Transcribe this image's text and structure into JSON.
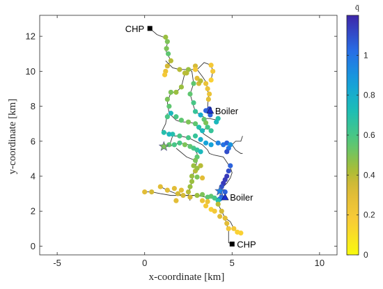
{
  "chart_data": {
    "type": "scatter",
    "xlabel": "x-coordinate [km]",
    "ylabel": "y-coordinate [km]",
    "xlim": [
      -6,
      11
    ],
    "ylim": [
      -0.5,
      13.2
    ],
    "xticks": [
      "-5",
      "0",
      "5",
      "10"
    ],
    "yticks": [
      "0",
      "2",
      "4",
      "6",
      "8",
      "10",
      "12"
    ],
    "grid": false,
    "colorbar": {
      "label": "q̄",
      "range": [
        0,
        1.2
      ],
      "ticks": [
        "0",
        "0.2",
        "0.4",
        "0.6",
        "0.8",
        "1"
      ],
      "colormap": "parula"
    },
    "annotations": [
      {
        "text": "CHP",
        "x": 0.3,
        "y": 12.45,
        "marker": "square"
      },
      {
        "text": "CHP",
        "x": 5.0,
        "y": 0.12,
        "marker": "square"
      },
      {
        "text": "Boiler",
        "x": 3.75,
        "y": 7.75,
        "marker": "triangle"
      },
      {
        "text": "Boiler",
        "x": 4.6,
        "y": 2.8,
        "marker": "triangle"
      }
    ],
    "stars": [
      {
        "x": 1.1,
        "y": 5.7,
        "value": 0.5
      },
      {
        "x": 4.3,
        "y": 3.15,
        "value": 0.95
      }
    ],
    "network_lines": [
      [
        [
          0.3,
          12.45
        ],
        [
          0.7,
          12.1
        ],
        [
          1.2,
          11.9
        ],
        [
          1.3,
          11.6
        ],
        [
          1.2,
          11.2
        ],
        [
          1.5,
          10.6
        ],
        [
          1.3,
          10.3
        ]
      ],
      [
        [
          1.2,
          10.6
        ],
        [
          1.6,
          10.2
        ],
        [
          2.0,
          10.1
        ],
        [
          2.5,
          10.1
        ],
        [
          3.0,
          10.1
        ],
        [
          3.4,
          10.5
        ],
        [
          3.8,
          10.35
        ],
        [
          3.9,
          10.0
        ],
        [
          3.8,
          9.5
        ]
      ],
      [
        [
          2.5,
          10.1
        ],
        [
          2.7,
          10.0
        ],
        [
          2.8,
          9.3
        ],
        [
          2.6,
          8.7
        ],
        [
          2.8,
          8.0
        ],
        [
          2.9,
          7.7
        ],
        [
          3.2,
          7.5
        ],
        [
          3.5,
          7.3
        ],
        [
          3.7,
          7.3
        ],
        [
          4.2,
          7.2
        ]
      ],
      [
        [
          2.3,
          9.9
        ],
        [
          2.1,
          9.1
        ],
        [
          1.8,
          8.8
        ],
        [
          1.5,
          8.8
        ],
        [
          1.3,
          8.2
        ],
        [
          1.4,
          7.6
        ],
        [
          1.8,
          7.2
        ],
        [
          2.1,
          7.1
        ],
        [
          2.5,
          7.1
        ],
        [
          2.9,
          7.0
        ],
        [
          3.1,
          6.7
        ],
        [
          3.4,
          6.4
        ],
        [
          4.0,
          6.0
        ],
        [
          4.4,
          5.8
        ],
        [
          4.6,
          5.9
        ],
        [
          5.0,
          5.8
        ]
      ],
      [
        [
          3.0,
          10.1
        ],
        [
          3.3,
          9.7
        ],
        [
          3.5,
          9.4
        ],
        [
          3.6,
          9.0
        ],
        [
          3.65,
          8.5
        ],
        [
          3.6,
          8.0
        ],
        [
          3.75,
          7.75
        ]
      ],
      [
        [
          1.3,
          7.6
        ],
        [
          1.2,
          7.0
        ],
        [
          1.0,
          6.6
        ],
        [
          1.4,
          6.4
        ],
        [
          1.7,
          6.3
        ],
        [
          2.0,
          6.3
        ],
        [
          2.5,
          6.2
        ],
        [
          2.9,
          6.0
        ],
        [
          3.3,
          5.8
        ],
        [
          3.6,
          5.5
        ],
        [
          3.7,
          5.3
        ],
        [
          4.0,
          5.2
        ],
        [
          4.5,
          5.1
        ],
        [
          4.7,
          4.8
        ],
        [
          4.9,
          4.5
        ],
        [
          5.0,
          4.2
        ],
        [
          4.9,
          3.9
        ],
        [
          4.7,
          3.6
        ],
        [
          4.5,
          3.4
        ],
        [
          4.4,
          3.2
        ],
        [
          4.3,
          2.9
        ],
        [
          4.6,
          2.8
        ]
      ],
      [
        [
          1.1,
          5.7
        ],
        [
          1.4,
          5.7
        ],
        [
          2.0,
          5.9
        ],
        [
          2.5,
          5.8
        ],
        [
          2.8,
          5.6
        ],
        [
          3.0,
          5.3
        ],
        [
          3.0,
          4.9
        ],
        [
          2.9,
          4.5
        ],
        [
          2.8,
          4.2
        ],
        [
          2.7,
          3.7
        ],
        [
          2.6,
          3.3
        ],
        [
          2.5,
          2.9
        ],
        [
          2.6,
          2.6
        ]
      ],
      [
        [
          0.1,
          3.1
        ],
        [
          0.4,
          3.1
        ],
        [
          0.9,
          3.0
        ],
        [
          1.5,
          2.9
        ],
        [
          2.0,
          2.9
        ],
        [
          2.6,
          2.9
        ],
        [
          3.0,
          2.9
        ],
        [
          3.5,
          2.8
        ],
        [
          4.0,
          2.75
        ],
        [
          4.3,
          2.75
        ],
        [
          4.6,
          2.8
        ]
      ],
      [
        [
          0.9,
          3.4
        ],
        [
          1.3,
          3.2
        ],
        [
          1.8,
          3.0
        ],
        [
          2.3,
          2.9
        ],
        [
          3.0,
          2.9
        ]
      ],
      [
        [
          4.3,
          2.75
        ],
        [
          4.2,
          2.4
        ],
        [
          4.4,
          2.0
        ],
        [
          4.6,
          1.6
        ],
        [
          4.7,
          1.2
        ],
        [
          4.8,
          0.9
        ],
        [
          4.8,
          0.5
        ],
        [
          4.8,
          0.2
        ],
        [
          5.0,
          0.12
        ]
      ],
      [
        [
          4.6,
          1.6
        ],
        [
          4.9,
          1.4
        ],
        [
          5.1,
          1.0
        ],
        [
          5.4,
          0.75
        ]
      ],
      [
        [
          5.0,
          5.8
        ],
        [
          5.2,
          6.0
        ],
        [
          5.5,
          6.0
        ],
        [
          5.6,
          6.3
        ]
      ],
      [
        [
          5.0,
          5.8
        ],
        [
          5.2,
          5.5
        ],
        [
          5.5,
          5.3
        ],
        [
          5.6,
          5.3
        ]
      ],
      [
        [
          1.8,
          5.6
        ],
        [
          2.4,
          5.1
        ],
        [
          2.9,
          4.9
        ]
      ],
      [
        [
          3.3,
          6.6
        ],
        [
          3.6,
          6.8
        ],
        [
          3.8,
          6.6
        ]
      ],
      [
        [
          1.4,
          5.7
        ],
        [
          1.6,
          6.3
        ]
      ]
    ],
    "points": [
      {
        "x": 1.2,
        "y": 11.95,
        "v": 0.45
      },
      {
        "x": 1.3,
        "y": 11.7,
        "v": 0.5
      },
      {
        "x": 1.25,
        "y": 11.3,
        "v": 0.5
      },
      {
        "x": 1.35,
        "y": 11.0,
        "v": 0.55
      },
      {
        "x": 1.5,
        "y": 10.6,
        "v": 0.4
      },
      {
        "x": 1.3,
        "y": 10.3,
        "v": 0.35
      },
      {
        "x": 1.2,
        "y": 10.0,
        "v": 0.25
      },
      {
        "x": 1.15,
        "y": 9.8,
        "v": 0.2
      },
      {
        "x": 2.0,
        "y": 10.1,
        "v": 0.4
      },
      {
        "x": 2.5,
        "y": 10.1,
        "v": 0.45
      },
      {
        "x": 2.4,
        "y": 9.9,
        "v": 0.4
      },
      {
        "x": 2.9,
        "y": 10.3,
        "v": 0.35
      },
      {
        "x": 2.9,
        "y": 10.1,
        "v": 0.2
      },
      {
        "x": 3.0,
        "y": 9.6,
        "v": 0.3
      },
      {
        "x": 3.1,
        "y": 9.3,
        "v": 0.35
      },
      {
        "x": 3.2,
        "y": 9.45,
        "v": 0.4
      },
      {
        "x": 3.5,
        "y": 9.3,
        "v": 0.25
      },
      {
        "x": 3.6,
        "y": 9.0,
        "v": 0.25
      },
      {
        "x": 3.7,
        "y": 8.7,
        "v": 0.25
      },
      {
        "x": 3.65,
        "y": 8.4,
        "v": 0.3
      },
      {
        "x": 3.8,
        "y": 10.35,
        "v": 0.2
      },
      {
        "x": 3.9,
        "y": 10.0,
        "v": 0.2
      },
      {
        "x": 3.8,
        "y": 9.5,
        "v": 0.15
      },
      {
        "x": 2.3,
        "y": 9.9,
        "v": 0.4
      },
      {
        "x": 2.1,
        "y": 9.1,
        "v": 0.45
      },
      {
        "x": 1.8,
        "y": 8.8,
        "v": 0.45
      },
      {
        "x": 1.5,
        "y": 8.8,
        "v": 0.5
      },
      {
        "x": 1.3,
        "y": 8.4,
        "v": 0.5
      },
      {
        "x": 1.4,
        "y": 8.0,
        "v": 0.55
      },
      {
        "x": 2.8,
        "y": 9.3,
        "v": 0.55
      },
      {
        "x": 2.6,
        "y": 8.7,
        "v": 0.55
      },
      {
        "x": 2.8,
        "y": 8.2,
        "v": 0.6
      },
      {
        "x": 2.9,
        "y": 7.7,
        "v": 0.65
      },
      {
        "x": 3.2,
        "y": 7.5,
        "v": 0.8
      },
      {
        "x": 3.5,
        "y": 7.75,
        "v": 1.05
      },
      {
        "x": 3.7,
        "y": 7.85,
        "v": 1.1
      },
      {
        "x": 3.75,
        "y": 7.5,
        "v": 1.05
      },
      {
        "x": 4.2,
        "y": 7.3,
        "v": 0.7
      },
      {
        "x": 4.1,
        "y": 7.1,
        "v": 0.75
      },
      {
        "x": 1.5,
        "y": 7.6,
        "v": 0.75
      },
      {
        "x": 1.8,
        "y": 7.4,
        "v": 0.6
      },
      {
        "x": 2.1,
        "y": 7.2,
        "v": 0.55
      },
      {
        "x": 2.5,
        "y": 7.1,
        "v": 0.5
      },
      {
        "x": 2.9,
        "y": 7.0,
        "v": 0.55
      },
      {
        "x": 1.3,
        "y": 7.4,
        "v": 0.6
      },
      {
        "x": 1.6,
        "y": 6.4,
        "v": 0.7
      },
      {
        "x": 2.0,
        "y": 6.3,
        "v": 0.6
      },
      {
        "x": 2.5,
        "y": 6.2,
        "v": 0.6
      },
      {
        "x": 2.9,
        "y": 6.3,
        "v": 0.65
      },
      {
        "x": 3.3,
        "y": 6.6,
        "v": 0.75
      },
      {
        "x": 3.1,
        "y": 6.8,
        "v": 0.7
      },
      {
        "x": 1.4,
        "y": 6.4,
        "v": 0.75
      },
      {
        "x": 1.1,
        "y": 6.5,
        "v": 0.7
      },
      {
        "x": 3.2,
        "y": 6.1,
        "v": 0.8
      },
      {
        "x": 3.5,
        "y": 5.9,
        "v": 0.85
      },
      {
        "x": 3.8,
        "y": 5.8,
        "v": 0.85
      },
      {
        "x": 4.2,
        "y": 5.9,
        "v": 0.95
      },
      {
        "x": 4.5,
        "y": 5.8,
        "v": 1.0
      },
      {
        "x": 4.7,
        "y": 5.9,
        "v": 1.05
      },
      {
        "x": 4.9,
        "y": 5.8,
        "v": 0.9
      },
      {
        "x": 4.8,
        "y": 5.6,
        "v": 1.0
      },
      {
        "x": 4.7,
        "y": 5.4,
        "v": 1.1
      },
      {
        "x": 1.4,
        "y": 5.8,
        "v": 0.55
      },
      {
        "x": 1.7,
        "y": 5.8,
        "v": 0.6
      },
      {
        "x": 2.0,
        "y": 5.9,
        "v": 0.6
      },
      {
        "x": 2.3,
        "y": 5.8,
        "v": 0.5
      },
      {
        "x": 2.6,
        "y": 5.7,
        "v": 0.55
      },
      {
        "x": 2.8,
        "y": 5.6,
        "v": 0.6
      },
      {
        "x": 3.0,
        "y": 5.5,
        "v": 0.65
      },
      {
        "x": 3.2,
        "y": 5.4,
        "v": 0.75
      },
      {
        "x": 3.0,
        "y": 5.1,
        "v": 0.55
      },
      {
        "x": 2.9,
        "y": 4.9,
        "v": 0.5
      },
      {
        "x": 2.8,
        "y": 4.6,
        "v": 0.45
      },
      {
        "x": 2.9,
        "y": 4.3,
        "v": 0.4
      },
      {
        "x": 2.7,
        "y": 4.0,
        "v": 0.45
      },
      {
        "x": 2.7,
        "y": 3.7,
        "v": 0.45
      },
      {
        "x": 2.6,
        "y": 3.4,
        "v": 0.45
      },
      {
        "x": 2.5,
        "y": 3.1,
        "v": 0.4
      },
      {
        "x": 2.6,
        "y": 2.8,
        "v": 0.35
      },
      {
        "x": 4.9,
        "y": 4.6,
        "v": 1.05
      },
      {
        "x": 4.8,
        "y": 4.3,
        "v": 1.1
      },
      {
        "x": 4.7,
        "y": 4.0,
        "v": 1.15
      },
      {
        "x": 4.6,
        "y": 3.8,
        "v": 1.15
      },
      {
        "x": 4.5,
        "y": 3.6,
        "v": 1.15
      },
      {
        "x": 4.4,
        "y": 3.4,
        "v": 1.1
      },
      {
        "x": 4.6,
        "y": 3.1,
        "v": 1.05
      },
      {
        "x": 4.4,
        "y": 2.8,
        "v": 1.05
      },
      {
        "x": 4.3,
        "y": 2.7,
        "v": 1.0
      },
      {
        "x": 0.0,
        "y": 3.1,
        "v": 0.3
      },
      {
        "x": 0.4,
        "y": 3.1,
        "v": 0.35
      },
      {
        "x": 0.9,
        "y": 3.4,
        "v": 0.3
      },
      {
        "x": 1.3,
        "y": 3.2,
        "v": 0.3
      },
      {
        "x": 1.7,
        "y": 3.3,
        "v": 0.3
      },
      {
        "x": 1.9,
        "y": 3.0,
        "v": 0.35
      },
      {
        "x": 2.1,
        "y": 3.2,
        "v": 0.3
      },
      {
        "x": 2.2,
        "y": 2.9,
        "v": 0.35
      },
      {
        "x": 1.8,
        "y": 2.6,
        "v": 0.3
      },
      {
        "x": 3.0,
        "y": 2.9,
        "v": 0.45
      },
      {
        "x": 3.3,
        "y": 2.95,
        "v": 0.5
      },
      {
        "x": 3.6,
        "y": 2.8,
        "v": 0.55
      },
      {
        "x": 3.8,
        "y": 2.85,
        "v": 0.55
      },
      {
        "x": 4.0,
        "y": 2.75,
        "v": 0.6
      },
      {
        "x": 4.2,
        "y": 2.6,
        "v": 0.7
      },
      {
        "x": 4.2,
        "y": 2.4,
        "v": 0.4
      },
      {
        "x": 4.4,
        "y": 2.0,
        "v": 0.35
      },
      {
        "x": 4.3,
        "y": 1.7,
        "v": 0.3
      },
      {
        "x": 4.6,
        "y": 1.6,
        "v": 0.3
      },
      {
        "x": 4.7,
        "y": 1.3,
        "v": 0.3
      },
      {
        "x": 4.8,
        "y": 1.0,
        "v": 0.2
      },
      {
        "x": 5.1,
        "y": 1.0,
        "v": 0.2
      },
      {
        "x": 5.3,
        "y": 0.8,
        "v": 0.15
      },
      {
        "x": 5.5,
        "y": 0.75,
        "v": 0.15
      },
      {
        "x": 3.5,
        "y": 2.3,
        "v": 0.2
      },
      {
        "x": 3.8,
        "y": 2.1,
        "v": 0.15
      },
      {
        "x": 4.0,
        "y": 2.0,
        "v": 0.2
      },
      {
        "x": 3.3,
        "y": 2.6,
        "v": 0.25
      },
      {
        "x": 3.6,
        "y": 2.55,
        "v": 0.25
      },
      {
        "x": 3.4,
        "y": 7.25,
        "v": 0.55
      },
      {
        "x": 3.5,
        "y": 7.05,
        "v": 0.5
      },
      {
        "x": 3.6,
        "y": 6.8,
        "v": 0.6
      },
      {
        "x": 3.8,
        "y": 6.6,
        "v": 0.65
      },
      {
        "x": 3.2,
        "y": 4.6,
        "v": 0.4
      },
      {
        "x": 3.0,
        "y": 4.45,
        "v": 0.45
      },
      {
        "x": 3.0,
        "y": 3.95,
        "v": 0.5
      },
      {
        "x": 3.3,
        "y": 3.9,
        "v": 0.3
      }
    ]
  }
}
